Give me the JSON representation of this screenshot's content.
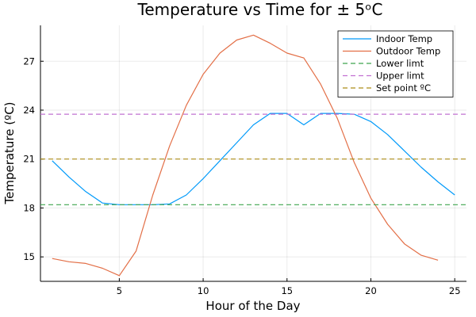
{
  "chart_data": {
    "type": "line",
    "title": "Temperature vs Time for ± 5ᵒC",
    "xlabel": "Hour of the Day",
    "ylabel": "Temperature (ºC)",
    "xlim": [
      0.3,
      25.7
    ],
    "ylim": [
      13.5,
      29.2
    ],
    "xticks": [
      5,
      10,
      15,
      20,
      25
    ],
    "yticks": [
      15,
      18,
      21,
      24,
      27
    ],
    "grid": true,
    "legend_position": "top-right",
    "series": [
      {
        "name": "Indoor Temp",
        "color": "#009AFA",
        "style": "solid",
        "x": [
          1,
          2,
          3,
          4,
          5,
          6,
          7,
          8,
          9,
          10,
          11,
          12,
          13,
          14,
          15,
          16,
          17,
          18,
          19,
          20,
          21,
          22,
          23,
          24,
          25
        ],
        "y": [
          20.9,
          19.9,
          19.0,
          18.3,
          18.2,
          18.2,
          18.2,
          18.25,
          18.8,
          19.8,
          20.9,
          22.0,
          23.1,
          23.8,
          23.8,
          23.1,
          23.8,
          23.8,
          23.75,
          23.3,
          22.5,
          21.5,
          20.5,
          19.6,
          18.8
        ]
      },
      {
        "name": "Outdoor Temp",
        "color": "#E36F47",
        "style": "solid",
        "x": [
          1,
          2,
          3,
          4,
          5,
          6,
          7,
          8,
          9,
          10,
          11,
          12,
          13,
          14,
          15,
          16,
          17,
          18,
          19,
          20,
          21,
          22,
          23,
          24
        ],
        "y": [
          14.9,
          14.7,
          14.6,
          14.3,
          13.85,
          15.35,
          18.8,
          21.8,
          24.3,
          26.2,
          27.5,
          28.3,
          28.6,
          28.1,
          27.5,
          27.2,
          25.6,
          23.5,
          20.8,
          18.6,
          17.0,
          15.8,
          15.1,
          14.8
        ]
      },
      {
        "name": "Lower limt",
        "color": "#3EA44E",
        "style": "dashed",
        "x": [
          0.3,
          25.7
        ],
        "y": [
          18.2,
          18.2
        ]
      },
      {
        "name": "Upper limt",
        "color": "#C271D2",
        "style": "dashed",
        "x": [
          0.3,
          25.7
        ],
        "y": [
          23.75,
          23.75
        ]
      },
      {
        "name": "Set point ºC",
        "color": "#AC8D18",
        "style": "dashed",
        "x": [
          0.3,
          25.7
        ],
        "y": [
          21.0,
          21.0
        ]
      }
    ]
  }
}
